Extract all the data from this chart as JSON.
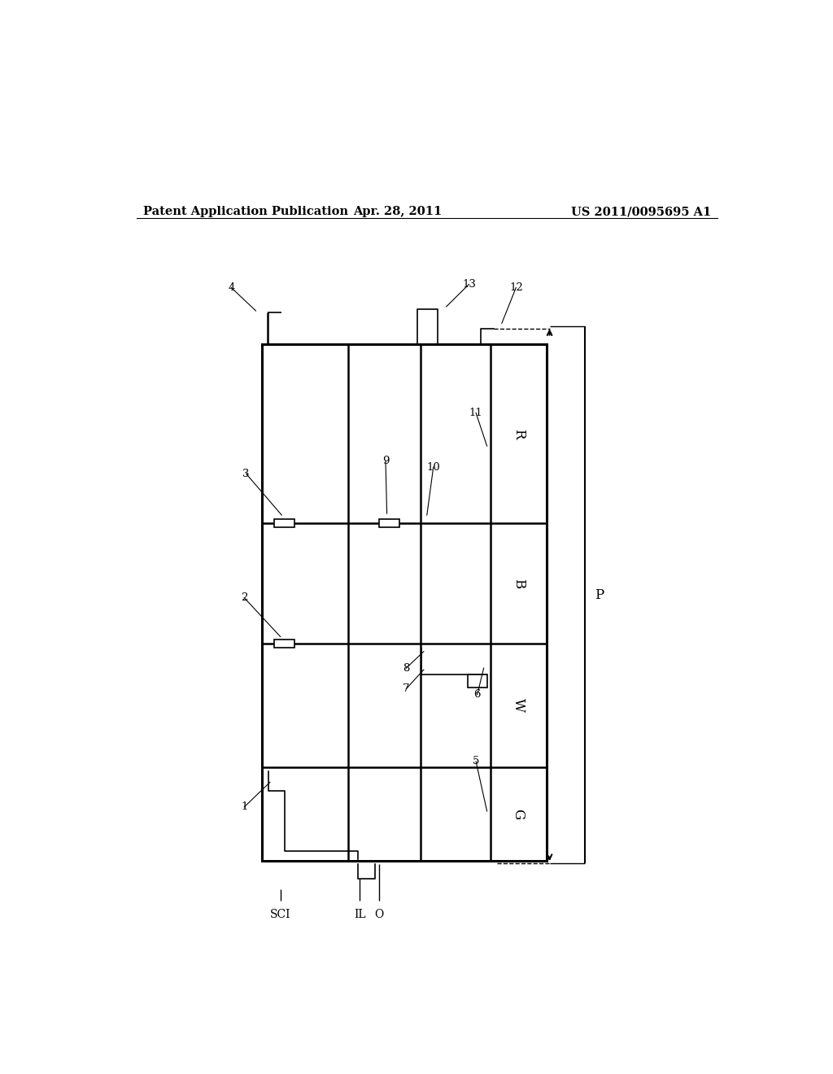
{
  "title_left": "Patent Application Publication",
  "title_mid": "Apr. 28, 2011",
  "title_right": "US 2011/0095695 A1",
  "bg_color": "#ffffff",
  "line_color": "#000000",
  "header_fontsize": 10.5,
  "OL": 0.245,
  "OR": 0.685,
  "OB": 0.115,
  "OT": 0.74,
  "C1": 0.378,
  "C2": 0.49,
  "C3": 0.598,
  "R1": 0.228,
  "R2": 0.378,
  "R3": 0.523,
  "lw_outer": 2.2,
  "lw_inner": 1.8,
  "lw_thin": 1.2
}
